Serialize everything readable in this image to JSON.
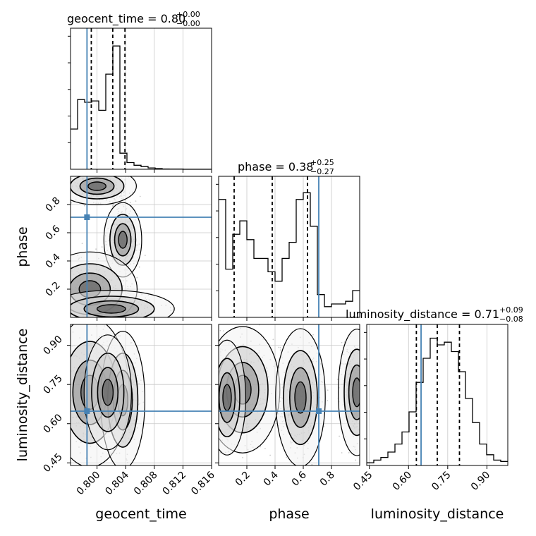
{
  "colors": {
    "truth": "#4682b4",
    "hist": "#000000",
    "grid": "#c8c8c8",
    "samples": "#8c8c8c",
    "quantile": "#000000"
  },
  "chart_data": {
    "type": "corner",
    "parameters": [
      {
        "name": "geocent_time",
        "axis_label": "geocent_time",
        "title": {
          "text": "geocent_time = 0.80",
          "plus": "+0.00",
          "minus": "−0.00"
        },
        "range": [
          0.7963,
          0.816
        ],
        "ticks": [
          0.8,
          0.804,
          0.808,
          0.812,
          0.816
        ],
        "tick_labels": [
          "0.800",
          "0.804",
          "0.808",
          "0.812",
          "0.816"
        ],
        "quantiles": [
          0.7992,
          0.8022,
          0.8039
        ],
        "truth": 0.7986,
        "hist": [
          0.3,
          0.52,
          0.5,
          0.51,
          0.44,
          0.71,
          0.92,
          0.12,
          0.05,
          0.03,
          0.02,
          0.01,
          0.005,
          0.002,
          0.001,
          0.001,
          0.0,
          0.0,
          0.0,
          0.0
        ]
      },
      {
        "name": "phase",
        "axis_label": "phase",
        "title": {
          "text": "phase = 0.38",
          "plus": "+0.25",
          "minus": "−0.27"
        },
        "range": [
          0.0,
          1.0
        ],
        "ticks": [
          0.2,
          0.4,
          0.6,
          0.8
        ],
        "tick_labels": [
          "0.2",
          "0.4",
          "0.6",
          "0.8"
        ],
        "quantiles": [
          0.11,
          0.38,
          0.63
        ],
        "truth": 0.71,
        "hist": [
          0.88,
          0.36,
          0.62,
          0.72,
          0.58,
          0.44,
          0.44,
          0.34,
          0.27,
          0.44,
          0.56,
          0.88,
          0.93,
          0.68,
          0.17,
          0.08,
          0.1,
          0.1,
          0.12,
          0.2
        ]
      },
      {
        "name": "luminosity_distance",
        "axis_label": "luminosity_distance",
        "title": {
          "text": "luminosity_distance = 0.71",
          "plus": "+0.09",
          "minus": "−0.08"
        },
        "range": [
          0.44,
          0.98
        ],
        "ticks": [
          0.45,
          0.6,
          0.75,
          0.9
        ],
        "tick_labels": [
          "0.45",
          "0.60",
          "0.75",
          "0.90"
        ],
        "quantiles": [
          0.63,
          0.71,
          0.795
        ],
        "truth": 0.648,
        "hist": [
          0.02,
          0.04,
          0.06,
          0.1,
          0.16,
          0.25,
          0.4,
          0.62,
          0.8,
          0.95,
          0.9,
          0.92,
          0.85,
          0.7,
          0.5,
          0.32,
          0.16,
          0.08,
          0.04,
          0.03
        ]
      }
    ],
    "truths": {
      "geocent_time": 0.7986,
      "phase": 0.71,
      "luminosity_distance": 0.648
    },
    "pairs": [
      {
        "x": "geocent_time",
        "y": "phase",
        "blobs": [
          {
            "cx": 0.8036,
            "cy": 0.55,
            "w": 0.0012,
            "h": 0.12
          },
          {
            "cx": 0.8,
            "cy": 0.93,
            "w": 0.0025,
            "h": 0.06
          },
          {
            "cx": 0.799,
            "cy": 0.2,
            "w": 0.003,
            "h": 0.12
          },
          {
            "cx": 0.802,
            "cy": 0.06,
            "w": 0.004,
            "h": 0.06
          }
        ]
      },
      {
        "x": "geocent_time",
        "y": "luminosity_distance",
        "blobs": [
          {
            "cx": 0.799,
            "cy": 0.72,
            "w": 0.0025,
            "h": 0.13
          },
          {
            "cx": 0.8036,
            "cy": 0.69,
            "w": 0.0014,
            "h": 0.12
          },
          {
            "cx": 0.8015,
            "cy": 0.72,
            "w": 0.0015,
            "h": 0.1
          }
        ]
      },
      {
        "x": "phase",
        "y": "luminosity_distance",
        "blobs": [
          {
            "cx": 0.17,
            "cy": 0.73,
            "w": 0.12,
            "h": 0.11
          },
          {
            "cx": 0.58,
            "cy": 0.7,
            "w": 0.08,
            "h": 0.12
          },
          {
            "cx": 0.98,
            "cy": 0.72,
            "w": 0.06,
            "h": 0.11
          },
          {
            "cx": 0.06,
            "cy": 0.7,
            "w": 0.06,
            "h": 0.1
          }
        ]
      }
    ]
  }
}
